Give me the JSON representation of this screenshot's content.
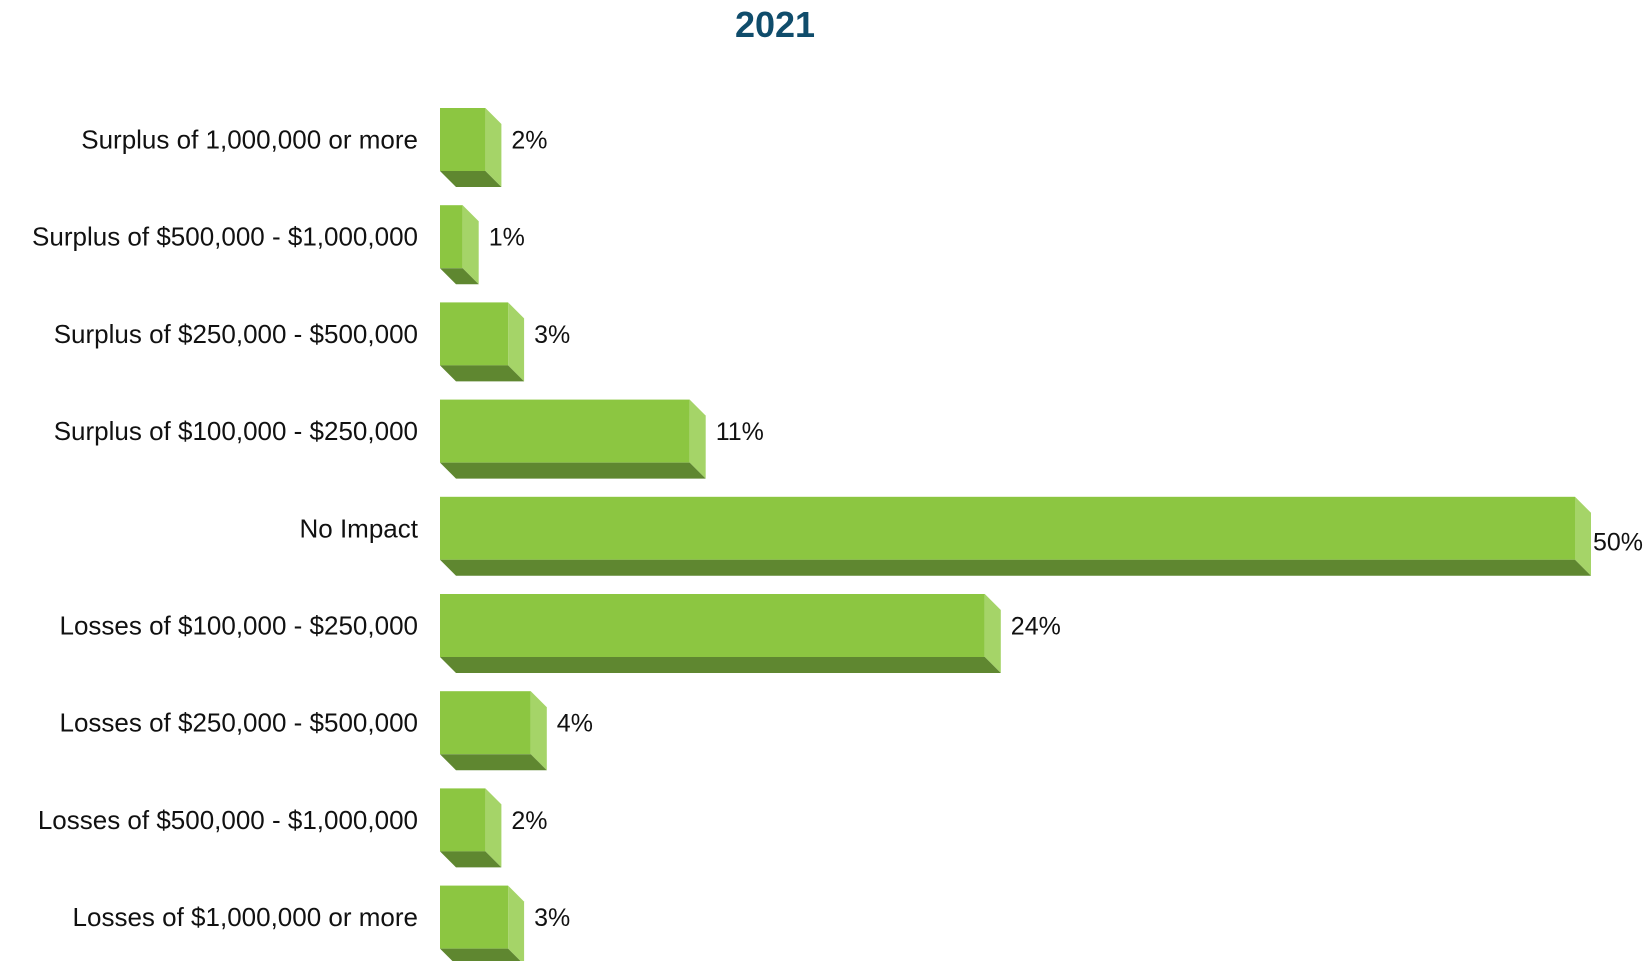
{
  "chart_data": {
    "type": "bar",
    "orientation": "horizontal",
    "title": "2021",
    "categories": [
      "Surplus of 1,000,000 or more",
      "Surplus of $500,000 - $1,000,000",
      "Surplus of $250,000 - $500,000",
      "Surplus of $100,000 - $250,000",
      "No Impact",
      "Losses of $100,000 - $250,000",
      "Losses of $250,000 - $500,000",
      "Losses of $500,000 - $1,000,000",
      "Losses of $1,000,000 or more"
    ],
    "values": [
      2,
      1,
      3,
      11,
      50,
      24,
      4,
      2,
      3
    ],
    "value_labels": [
      "2%",
      "1%",
      "3%",
      "11%",
      "50%",
      "24%",
      "4%",
      "2%",
      "3%"
    ],
    "unit": "%",
    "xlim": [
      0,
      50
    ],
    "grid": false,
    "legend": "none",
    "colors": {
      "bar_front": "#8cc641",
      "bar_side": "#a5d468",
      "bar_bottom": "#5f8730",
      "title": "#0f4c6b"
    }
  }
}
